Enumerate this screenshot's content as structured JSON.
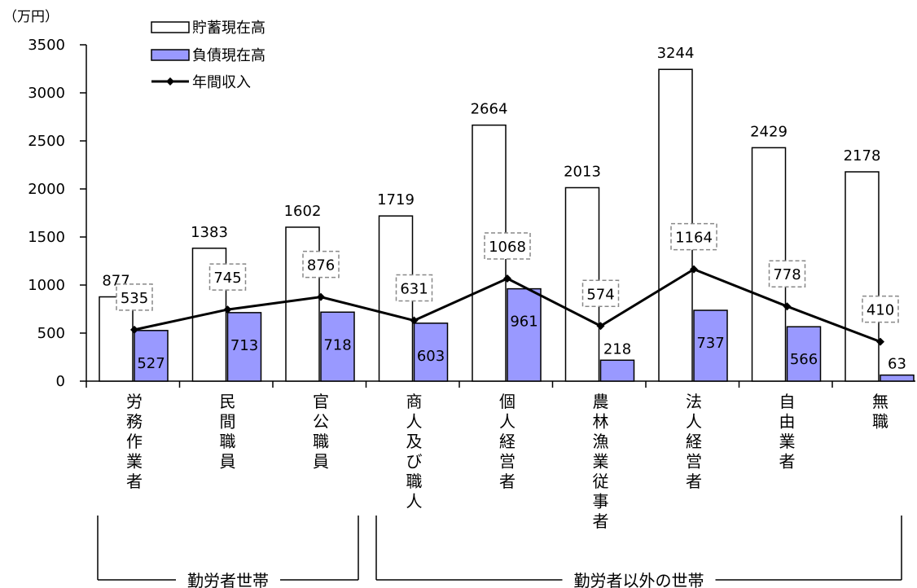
{
  "chart_data": {
    "type": "bar",
    "unit_label": "（万円）",
    "ylim": [
      0,
      3500
    ],
    "y_ticks": [
      0,
      500,
      1000,
      1500,
      2000,
      2500,
      3000,
      3500
    ],
    "categories": [
      "労務作業者",
      "民間職員",
      "官公職員",
      "商人及び職人",
      "個人経営者",
      "農林漁業従事者",
      "法人経営者",
      "自由業者",
      "無職"
    ],
    "series": [
      {
        "name": "貯蓄現在高",
        "kind": "bar",
        "color": "#ffffff",
        "values": [
          877,
          1383,
          1602,
          1719,
          2664,
          2013,
          3244,
          2429,
          2178
        ]
      },
      {
        "name": "負債現在高",
        "kind": "bar",
        "color": "#9999ff",
        "values": [
          527,
          713,
          718,
          603,
          961,
          218,
          737,
          566,
          63
        ]
      },
      {
        "name": "年間収入",
        "kind": "line",
        "color": "#000000",
        "values": [
          535,
          745,
          876,
          631,
          1068,
          574,
          1164,
          778,
          410
        ]
      }
    ],
    "groups": [
      {
        "label": "勤労者世帯",
        "from": 0,
        "to": 2
      },
      {
        "label": "勤労者以外の世帯",
        "from": 3,
        "to": 8
      }
    ],
    "legend_position": "top-left",
    "grid": false
  }
}
